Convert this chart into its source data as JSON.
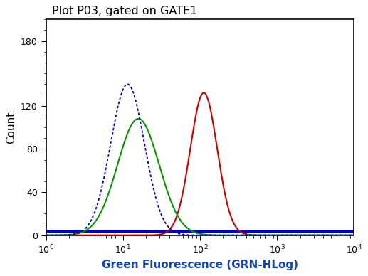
{
  "title": "Plot P03, gated on GATE1",
  "xlabel": "Green Fluorescence (GRN-HLog)",
  "ylabel": "Count",
  "xlim_log": [
    0,
    4
  ],
  "ylim": [
    0,
    200
  ],
  "yticks": [
    0,
    40,
    80,
    120,
    180
  ],
  "title_fontsize": 11.5,
  "label_fontsize": 11,
  "tick_fontsize": 9,
  "blue_peak_log": 1.06,
  "blue_sigma": 0.22,
  "blue_amplitude": 140,
  "blue_color": "#0000cc",
  "green_peak_log": 1.2,
  "green_sigma": 0.27,
  "green_amplitude": 108,
  "green_color": "#009900",
  "red_peak_log": 2.05,
  "red_sigma": 0.175,
  "red_amplitude": 132,
  "red_color": "#cc0000",
  "background_color": "#ffffff",
  "plot_bg_color": "#ffffff",
  "blue_baseline": 3.5,
  "blue_baseline_linewidth": 3.0
}
